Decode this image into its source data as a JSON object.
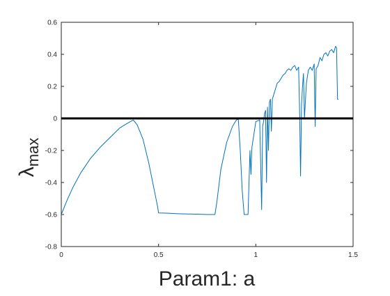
{
  "chart_data": {
    "type": "line",
    "title": "",
    "xlabel": "Param1: a",
    "ylabel_base": "λ",
    "ylabel_sub": "max",
    "xlim": [
      0,
      1.5
    ],
    "ylim": [
      -0.8,
      0.6
    ],
    "x_ticks": [
      0,
      0.5,
      1,
      1.5
    ],
    "x_tick_labels": [
      "0",
      "0.5",
      "1",
      "1.5"
    ],
    "y_ticks": [
      -0.8,
      -0.6,
      -0.4,
      -0.2,
      0,
      0.2,
      0.4,
      0.6
    ],
    "y_tick_labels": [
      "-0.8",
      "-0.6",
      "-0.4",
      "-0.2",
      "0",
      "0.2",
      "0.4",
      "0.6"
    ],
    "grid": false,
    "series_color": "#0072BD",
    "reference_line": {
      "y": 0,
      "color": "#000000"
    },
    "series": [
      {
        "x": [
          0,
          0.03,
          0.06,
          0.1,
          0.15,
          0.2,
          0.25,
          0.3,
          0.34,
          0.37,
          0.39,
          0.42,
          0.45,
          0.48,
          0.495,
          0.5,
          0.55,
          0.6,
          0.65,
          0.7,
          0.75,
          0.78,
          0.79,
          0.8,
          0.82,
          0.85,
          0.88,
          0.9,
          0.91,
          0.92,
          0.93,
          0.94,
          0.95,
          0.96,
          0.97,
          0.975,
          0.98,
          1.0,
          1.02,
          1.03,
          1.035,
          1.04,
          1.045,
          1.05,
          1.055,
          1.06,
          1.065,
          1.07,
          1.075,
          1.08,
          1.085,
          1.09,
          1.1,
          1.11,
          1.12,
          1.13,
          1.14,
          1.15,
          1.16,
          1.17,
          1.18,
          1.19,
          1.2,
          1.21,
          1.22,
          1.225,
          1.23,
          1.235,
          1.24,
          1.245,
          1.25,
          1.26,
          1.27,
          1.28,
          1.29,
          1.3,
          1.305,
          1.31,
          1.32,
          1.33,
          1.34,
          1.35,
          1.36,
          1.37,
          1.38,
          1.39,
          1.4,
          1.41,
          1.415,
          1.42,
          1.425
        ],
        "y": [
          -0.6,
          -0.51,
          -0.43,
          -0.34,
          -0.25,
          -0.18,
          -0.12,
          -0.06,
          -0.03,
          -0.01,
          -0.04,
          -0.13,
          -0.28,
          -0.46,
          -0.55,
          -0.59,
          -0.592,
          -0.595,
          -0.597,
          -0.598,
          -0.6,
          -0.6,
          -0.6,
          -0.52,
          -0.32,
          -0.15,
          -0.05,
          -0.01,
          -0.005,
          -0.2,
          -0.45,
          -0.6,
          -0.6,
          -0.6,
          -0.2,
          -0.35,
          -0.18,
          -0.02,
          -0.01,
          -0.57,
          -0.05,
          -0.02,
          0.03,
          0.05,
          -0.4,
          0.07,
          -0.2,
          0.1,
          0.12,
          -0.08,
          0.12,
          0.14,
          0.18,
          0.22,
          0.23,
          0.25,
          0.27,
          0.28,
          0.3,
          0.31,
          0.3,
          0.32,
          0.33,
          0.3,
          0.32,
          0.05,
          -0.36,
          0.08,
          0.2,
          0.28,
          0.0,
          0.22,
          0.3,
          0.32,
          0.3,
          0.34,
          -0.05,
          0.31,
          0.33,
          0.38,
          0.36,
          0.4,
          0.41,
          0.39,
          0.42,
          0.43,
          0.41,
          0.45,
          0.44,
          0.12,
          0.12
        ]
      }
    ]
  }
}
